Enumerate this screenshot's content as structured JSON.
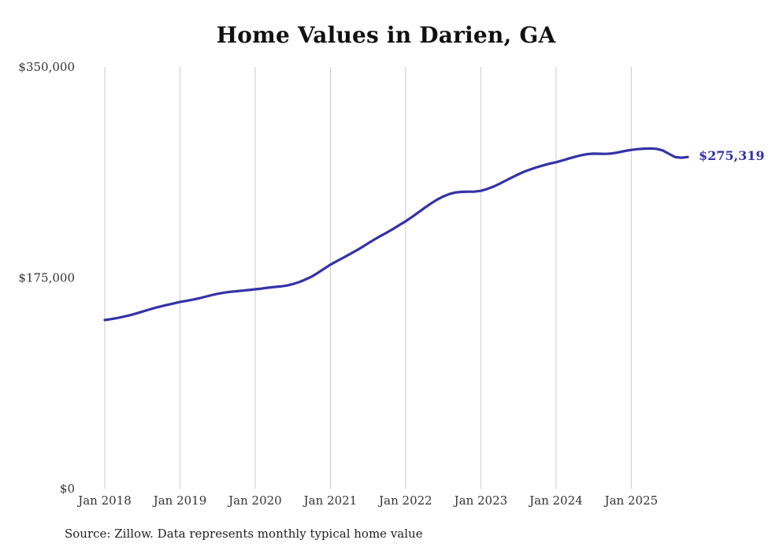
{
  "title": "Home Values in Darien, GA",
  "source_note": "Source: Zillow. Data represents monthly typical home value",
  "end_label": "$275,319",
  "colors": {
    "line": "#3532a8",
    "grid": "#cccccc",
    "tick_text": "#333333",
    "title_text": "#111111"
  },
  "chart_data": {
    "type": "line",
    "title": "Home Values in Darien, GA",
    "x_start": "2018-01",
    "x_interval": "month",
    "x_tick_labels": [
      "Jan 2018",
      "Jan 2019",
      "Jan 2020",
      "Jan 2021",
      "Jan 2022",
      "Jan 2023",
      "Jan 2024",
      "Jan 2025"
    ],
    "y_ticks": [
      0,
      175000,
      350000
    ],
    "y_tick_labels": [
      "$0",
      "$175,000",
      "$350,000"
    ],
    "ylim": [
      0,
      350000
    ],
    "grid": "vertical-only",
    "legend": "none",
    "final_value": 275319,
    "series": [
      {
        "name": "Monthly typical home value",
        "values": [
          140000,
          140800,
          141700,
          142800,
          144000,
          145400,
          147000,
          148600,
          150100,
          151400,
          152600,
          153800,
          155000,
          155900,
          156900,
          158000,
          159300,
          160600,
          161800,
          162700,
          163400,
          163900,
          164400,
          164900,
          165500,
          166100,
          166800,
          167400,
          167900,
          168600,
          169800,
          171500,
          173600,
          176000,
          179200,
          182600,
          186000,
          188800,
          191600,
          194400,
          197300,
          200400,
          203600,
          206800,
          209800,
          212600,
          215600,
          218800,
          222000,
          225500,
          229200,
          233000,
          236600,
          239900,
          242600,
          244600,
          245900,
          246400,
          246500,
          246600,
          247200,
          248700,
          250700,
          253100,
          255800,
          258500,
          261000,
          263300,
          265200,
          266900,
          268400,
          269800,
          271000,
          272400,
          274000,
          275500,
          276800,
          277700,
          278100,
          278000,
          277900,
          278300,
          279200,
          280300,
          281200,
          281800,
          282200,
          282400,
          282100,
          280800,
          278000,
          275200,
          274700,
          275319
        ]
      }
    ]
  }
}
